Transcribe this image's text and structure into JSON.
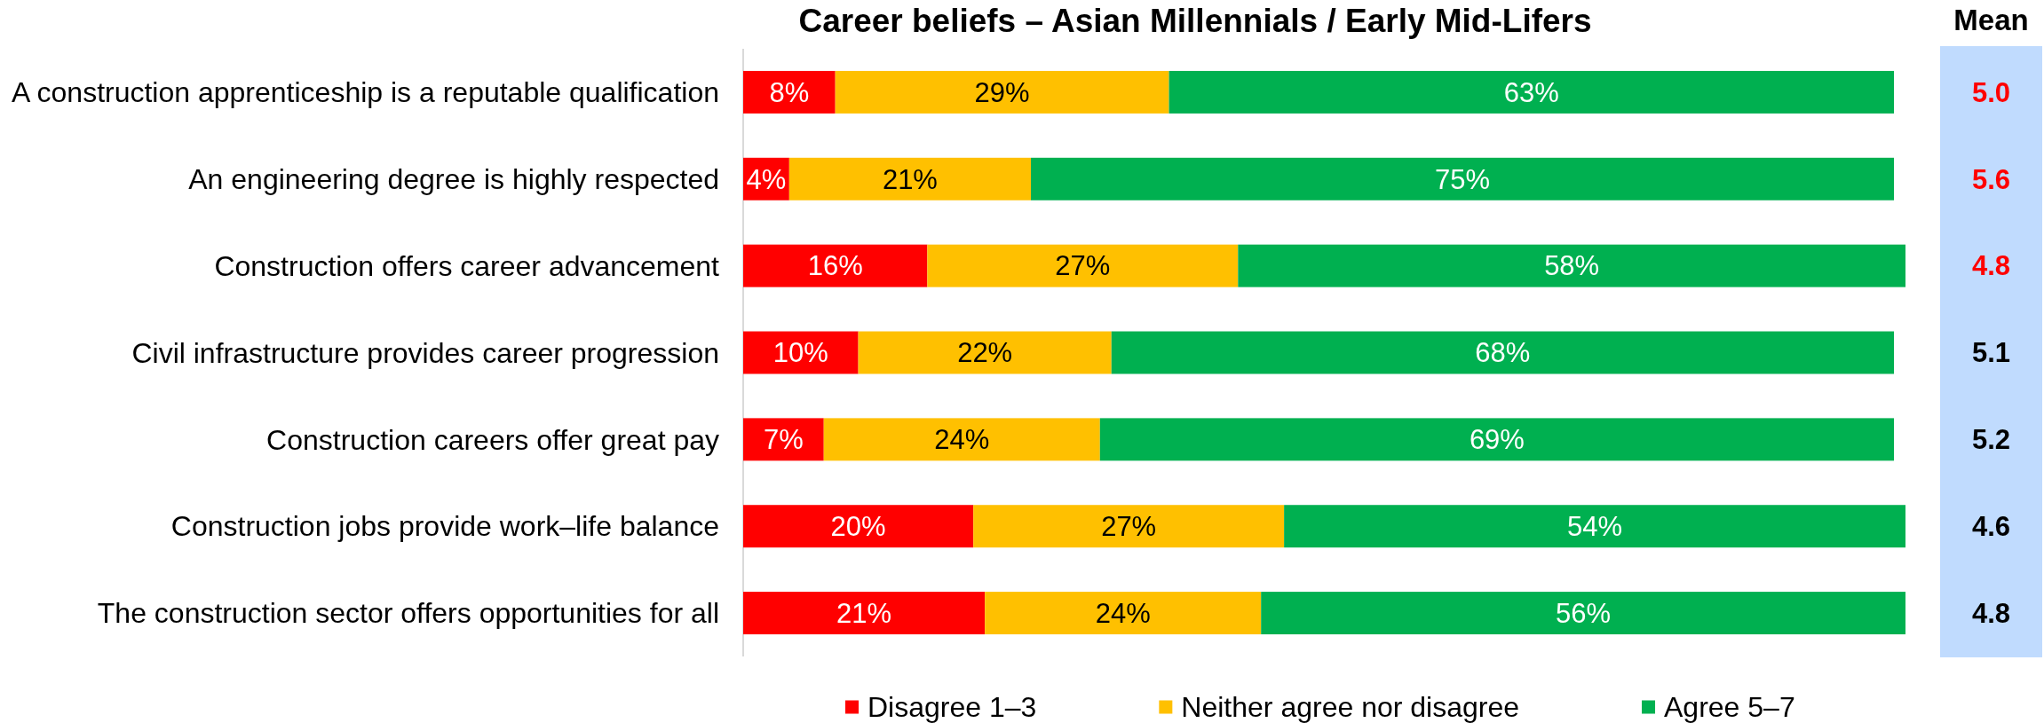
{
  "chart_data": [
    {
      "type": "bar",
      "title": "Career beliefs – Asian Millennials / Early Mid-Lifers",
      "orientation": "horizontal",
      "stacked": true,
      "legend": "bottom",
      "categories": [
        "A construction apprenticeship is a reputable qualification",
        "An engineering degree is highly respected",
        "Construction offers career advancement",
        "Civil infrastructure provides career progression",
        "Construction careers offer great pay",
        "Construction jobs provide work–life balance",
        "The construction sector offers opportunities for all"
      ],
      "series": [
        {
          "name": "Disagree 1–3",
          "color": "#ff0000",
          "values": [
            8,
            4,
            16,
            10,
            7,
            20,
            21
          ],
          "value_labels": [
            "8%",
            "4%",
            "16%",
            "10%",
            "7%",
            "20%",
            "21%"
          ]
        },
        {
          "name": "Neither agree nor disagree",
          "color": "#ffc000",
          "values": [
            29,
            21,
            27,
            22,
            24,
            27,
            24
          ],
          "value_labels": [
            "29%",
            "21%",
            "27%",
            "22%",
            "24%",
            "27%",
            "24%"
          ]
        },
        {
          "name": "Agree 5–7",
          "color": "#00b050",
          "values": [
            63,
            75,
            58,
            68,
            69,
            54,
            56
          ],
          "value_labels": [
            "63%",
            "75%",
            "58%",
            "68%",
            "69%",
            "54%",
            "56%"
          ]
        }
      ]
    },
    {
      "type": "other",
      "title": "Mean",
      "annotations": [
        "5.0",
        "5.6",
        "4.8",
        "5.1",
        "5.2",
        "4.6",
        "4.8"
      ],
      "colors": [
        "#ff0000",
        "#ff0000",
        "#ff0000",
        "#000000",
        "#000000",
        "#000000",
        "#000000"
      ]
    }
  ]
}
